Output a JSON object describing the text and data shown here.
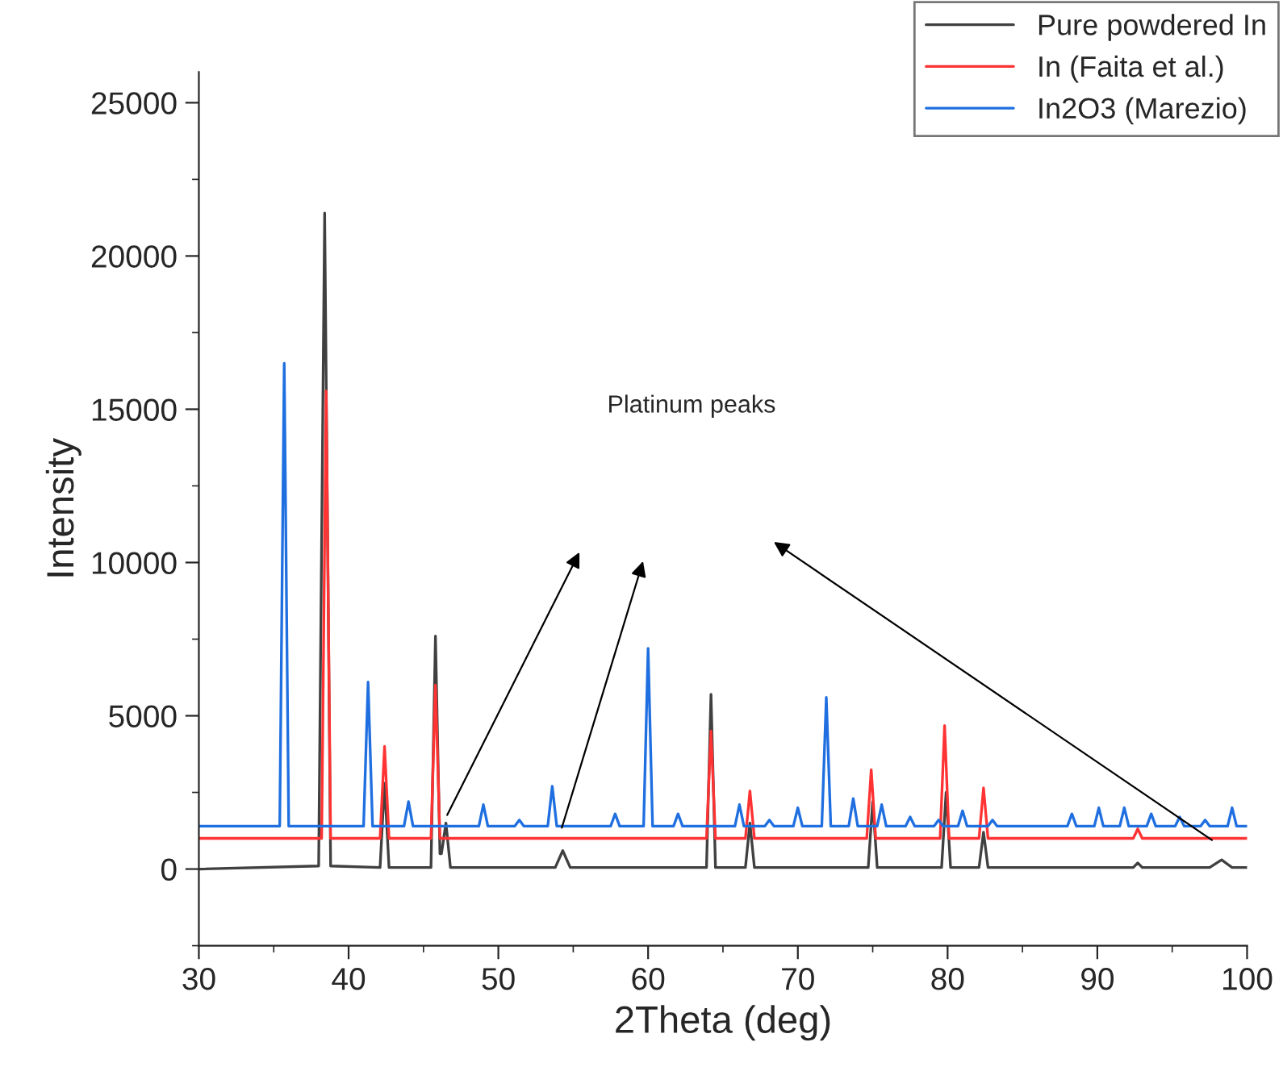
{
  "chart_data": {
    "type": "line",
    "xlabel": "2Theta (deg)",
    "ylabel": "Intensity",
    "xlim": [
      30,
      100
    ],
    "ylim": [
      -2500,
      26000
    ],
    "xticks": [
      30,
      40,
      50,
      60,
      70,
      80,
      90,
      100
    ],
    "yticks": [
      0,
      5000,
      10000,
      15000,
      20000,
      25000
    ],
    "grid": false,
    "legend": "top right",
    "marker": "none",
    "line_style": "solid",
    "series": [
      {
        "name": "Pure powdered In",
        "color": "#404040",
        "x": [
          30,
          38.0,
          38.4,
          38.8,
          42.1,
          42.4,
          42.7,
          45.5,
          45.8,
          46.1,
          46.2,
          46.5,
          46.8,
          53.8,
          54.3,
          54.8,
          63.9,
          64.2,
          64.5,
          66.5,
          66.8,
          67.1,
          74.7,
          75.0,
          75.3,
          79.6,
          79.9,
          80.2,
          82.1,
          82.4,
          82.7,
          92.4,
          92.7,
          93.0,
          97.5,
          98.3,
          99.0,
          100
        ],
        "values": [
          0,
          100,
          21400,
          100,
          50,
          2800,
          50,
          50,
          7600,
          500,
          500,
          1500,
          50,
          50,
          600,
          50,
          50,
          5700,
          50,
          50,
          1500,
          50,
          50,
          2200,
          50,
          50,
          2500,
          50,
          50,
          1200,
          50,
          50,
          200,
          50,
          50,
          300,
          50,
          50
        ]
      },
      {
        "name": "In (Faita et al.)",
        "color": "#ff3333",
        "x": [
          30,
          38.2,
          38.5,
          38.8,
          42.1,
          42.4,
          42.7,
          45.5,
          45.8,
          46.1,
          63.9,
          64.2,
          64.5,
          66.5,
          66.8,
          67.1,
          74.6,
          74.9,
          75.2,
          79.5,
          79.8,
          80.1,
          82.1,
          82.4,
          82.7,
          92.4,
          92.7,
          93.0,
          100
        ],
        "values": [
          1000,
          1000,
          15600,
          1000,
          1000,
          4000,
          1000,
          1000,
          6000,
          1000,
          1000,
          4500,
          1000,
          1000,
          2550,
          1000,
          1000,
          3240,
          1000,
          1000,
          4680,
          1000,
          1000,
          2650,
          1000,
          1000,
          1310,
          1000,
          1000
        ]
      },
      {
        "name": "In2O3 (Marezio)",
        "color": "#1f6fe0",
        "x": [
          30,
          35.4,
          35.7,
          36.0,
          41.0,
          41.3,
          41.6,
          43.7,
          44.0,
          44.3,
          48.7,
          49.0,
          49.3,
          51.1,
          51.4,
          51.7,
          53.3,
          53.6,
          53.9,
          57.5,
          57.8,
          58.1,
          59.7,
          60.0,
          60.3,
          61.7,
          62.0,
          62.3,
          65.8,
          66.1,
          66.4,
          67.8,
          68.1,
          68.4,
          69.7,
          70.0,
          70.3,
          71.6,
          71.9,
          72.2,
          73.4,
          73.7,
          74.0,
          75.3,
          75.6,
          75.9,
          77.2,
          77.5,
          77.8,
          79.1,
          79.4,
          79.7,
          80.7,
          81.0,
          81.3,
          82.7,
          83.0,
          83.3,
          88.0,
          88.3,
          88.6,
          89.8,
          90.1,
          90.4,
          91.5,
          91.8,
          92.1,
          93.3,
          93.6,
          93.9,
          95.2,
          95.5,
          95.8,
          96.9,
          97.2,
          97.5,
          98.7,
          99.0,
          99.3,
          100
        ],
        "values": [
          1400,
          1400,
          16500,
          1400,
          1400,
          6100,
          1400,
          1400,
          2200,
          1400,
          1400,
          2100,
          1400,
          1400,
          1600,
          1400,
          1400,
          2700,
          1400,
          1400,
          1800,
          1400,
          1400,
          7200,
          1400,
          1400,
          1800,
          1400,
          1400,
          2100,
          1400,
          1400,
          1600,
          1400,
          1400,
          2000,
          1400,
          1400,
          5600,
          1400,
          1400,
          2300,
          1400,
          1400,
          2100,
          1400,
          1400,
          1700,
          1400,
          1400,
          1600,
          1400,
          1400,
          1900,
          1400,
          1400,
          1600,
          1400,
          1400,
          1800,
          1400,
          1400,
          2000,
          1400,
          1400,
          2000,
          1400,
          1400,
          1800,
          1400,
          1400,
          1700,
          1400,
          1400,
          1600,
          1400,
          1400,
          2000,
          1400,
          1400
        ]
      }
    ],
    "annotations": [
      "Platinum peaks"
    ]
  }
}
